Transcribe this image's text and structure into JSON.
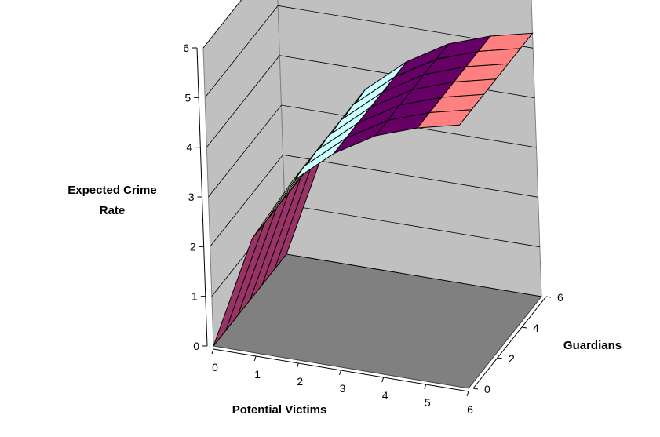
{
  "chart_data": {
    "type": "surface",
    "zlabel": "Expected Crime Rate",
    "xlabel": "Potential Victims",
    "ylabel": "Guardians",
    "zlim": [
      0,
      6
    ],
    "z_ticks": [
      "0",
      "1",
      "2",
      "3",
      "4",
      "5",
      "6"
    ],
    "x_ticks": [
      "0",
      "1",
      "2",
      "3",
      "4",
      "5",
      "6"
    ],
    "y_ticks": [
      "0",
      "2",
      "4",
      "6"
    ],
    "grid": "on",
    "x": [
      0,
      1,
      2,
      3,
      4,
      5,
      6
    ],
    "y": [
      0,
      1,
      2,
      3,
      4,
      5,
      6
    ],
    "z": [
      [
        0,
        2.3,
        3.6,
        4.3,
        4.8,
        5.1,
        5.3
      ],
      [
        0,
        2.3,
        3.6,
        4.3,
        4.8,
        5.1,
        5.3
      ],
      [
        0,
        2.3,
        3.6,
        4.3,
        4.8,
        5.1,
        5.3
      ],
      [
        0,
        2.3,
        3.6,
        4.3,
        4.8,
        5.1,
        5.3
      ],
      [
        0,
        2.3,
        3.6,
        4.3,
        4.8,
        5.1,
        5.3
      ],
      [
        0,
        2.3,
        3.6,
        4.3,
        4.8,
        5.1,
        5.3
      ],
      [
        0,
        2.3,
        3.6,
        4.3,
        4.8,
        5.1,
        5.3
      ]
    ],
    "band_colors": [
      "#9999ff",
      "#993366",
      "#ffffcc",
      "#ccffff",
      "#660066",
      "#ff8080"
    ],
    "wall_color": "#c0c0c0",
    "floor_color": "#808080"
  }
}
